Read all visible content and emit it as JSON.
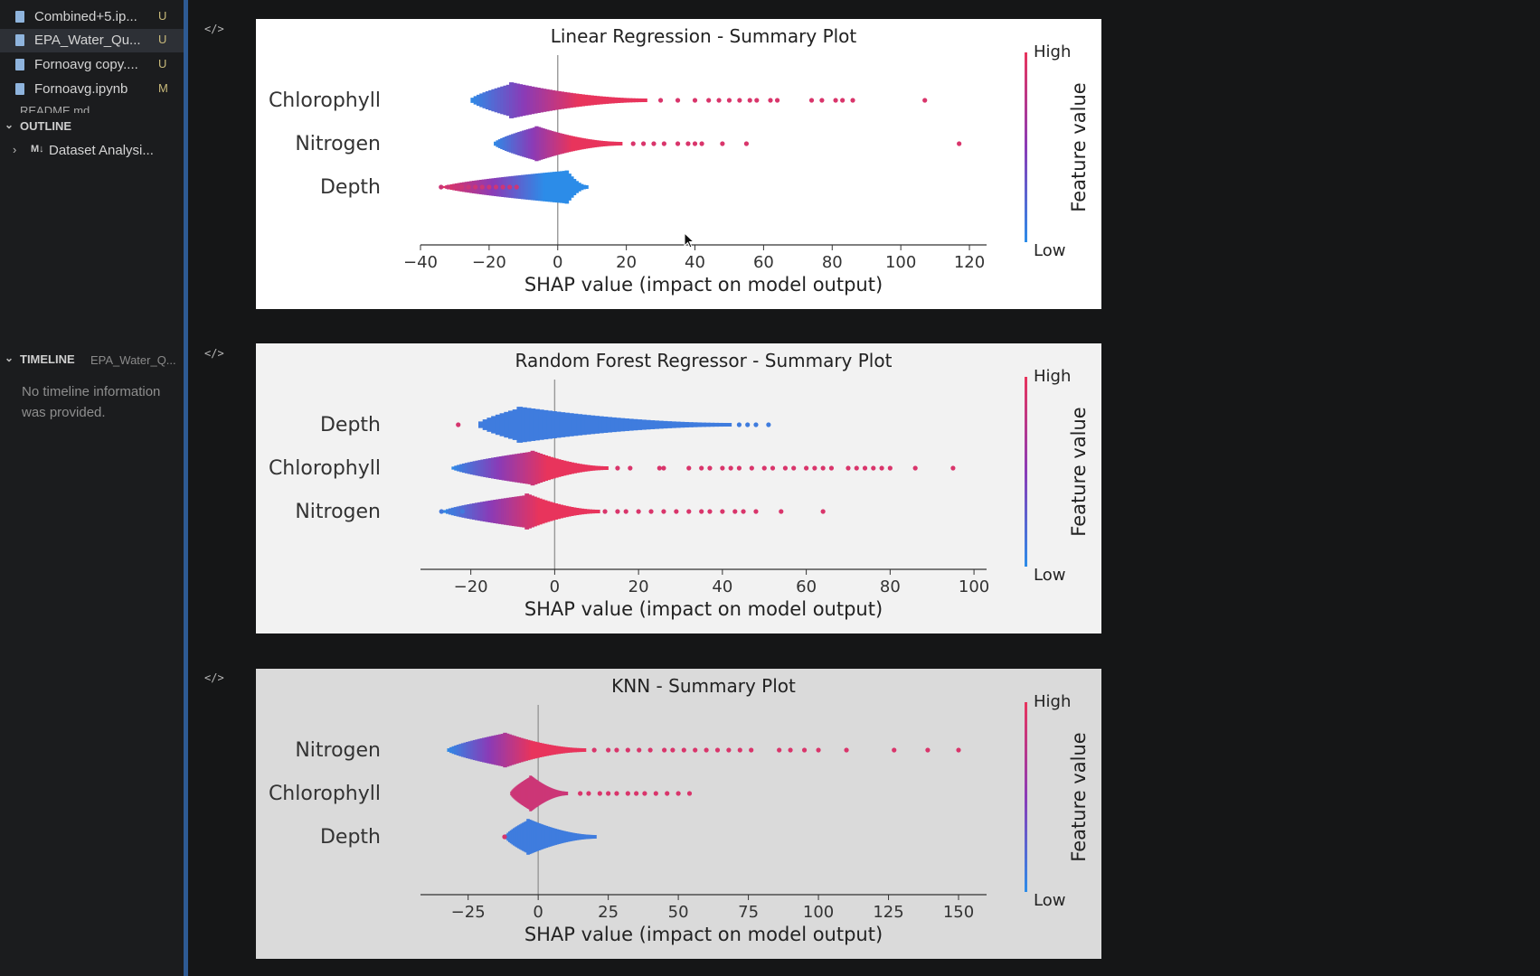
{
  "explorer": {
    "files": [
      {
        "name": "Combined+5.ip...",
        "badge": "U",
        "icon": "notebook-icon",
        "selected": false
      },
      {
        "name": "EPA_Water_Qu...",
        "badge": "U",
        "icon": "notebook-icon",
        "selected": true
      },
      {
        "name": "Fornoavg copy....",
        "badge": "U",
        "icon": "notebook-icon",
        "selected": false
      },
      {
        "name": "Fornoavg.ipynb",
        "badge": "M",
        "icon": "notebook-icon",
        "selected": false
      }
    ],
    "partial_file": "README.md"
  },
  "outline": {
    "header": "OUTLINE",
    "items": [
      {
        "prefix": "M↓",
        "label": "Dataset Analysi..."
      }
    ]
  },
  "timeline": {
    "header": "TIMELINE",
    "file": "EPA_Water_Q...",
    "message": "No timeline information was provided."
  },
  "cell_toggle_glyph": "</>",
  "colors": {
    "high": "#e8345c",
    "low": "#2c8ce8",
    "mid": "#8a3bb7"
  },
  "chart_data": [
    {
      "type": "beeswarm",
      "title": "Linear Regression - Summary Plot",
      "xlabel": "SHAP value (impact on model output)",
      "colorbar_label": "Feature value",
      "colorbar_high": "High",
      "colorbar_low": "Low",
      "xlim": [
        -40,
        125
      ],
      "xticks": [
        -40,
        -20,
        0,
        20,
        40,
        60,
        80,
        100,
        120
      ],
      "xtick_labels": [
        "−40",
        "−20",
        "0",
        "20",
        "40",
        "60",
        "80",
        "100",
        "120"
      ],
      "background": "#ffffff",
      "features": [
        {
          "name": "Chlorophyll",
          "min": -26,
          "max": 107,
          "peak": -14,
          "dense_max": 25,
          "low_side": "left",
          "outliers": [
            30,
            35,
            40,
            44,
            47,
            50,
            53,
            56,
            58,
            62,
            64,
            74,
            77,
            81,
            83,
            86,
            107
          ]
        },
        {
          "name": "Nitrogen",
          "min": -19,
          "max": 117,
          "peak": -7,
          "dense_max": 18,
          "low_side": "left",
          "outliers": [
            22,
            25,
            28,
            31,
            35,
            38,
            40,
            42,
            48,
            55,
            117
          ]
        },
        {
          "name": "Depth",
          "min": -34,
          "max": 8,
          "peak": 2,
          "dense_max": 8,
          "low_side": "right",
          "outliers": [
            -34,
            -32,
            -30,
            -28,
            -26,
            -24,
            -22,
            -20,
            -18,
            -16,
            -14,
            -12
          ]
        }
      ]
    },
    {
      "type": "beeswarm",
      "title": "Random Forest Regressor - Summary Plot",
      "xlabel": "SHAP value (impact on model output)",
      "colorbar_label": "Feature value",
      "colorbar_high": "High",
      "colorbar_low": "Low",
      "xlim": [
        -32,
        103
      ],
      "xticks": [
        -20,
        0,
        20,
        40,
        60,
        80,
        100
      ],
      "xtick_labels": [
        "−20",
        "0",
        "20",
        "40",
        "60",
        "80",
        "100"
      ],
      "background": "#f2f2f2",
      "features": [
        {
          "name": "Depth",
          "min": -19,
          "max": 51,
          "peak": -9,
          "dense_max": 41,
          "low_side": "all",
          "outliers": [
            -23,
            44,
            46,
            48,
            51
          ]
        },
        {
          "name": "Chlorophyll",
          "min": -25,
          "max": 95,
          "peak": -6,
          "dense_max": 12,
          "low_side": "left",
          "outliers": [
            15,
            18,
            25,
            26,
            32,
            35,
            37,
            40,
            42,
            44,
            47,
            50,
            52,
            55,
            57,
            60,
            62,
            64,
            66,
            70,
            72,
            74,
            76,
            78,
            80,
            86,
            95
          ]
        },
        {
          "name": "Nitrogen",
          "min": -27,
          "max": 64,
          "peak": -7,
          "dense_max": 10,
          "low_side": "left",
          "outliers": [
            -27,
            -25,
            -22,
            12,
            15,
            17,
            20,
            23,
            26,
            29,
            32,
            35,
            37,
            40,
            43,
            45,
            48,
            54,
            64
          ]
        }
      ]
    },
    {
      "type": "beeswarm",
      "title": "KNN - Summary Plot",
      "xlabel": "SHAP value (impact on model output)",
      "colorbar_label": "Feature value",
      "colorbar_high": "High",
      "colorbar_low": "Low",
      "xlim": [
        -42,
        160
      ],
      "xticks": [
        -25,
        0,
        25,
        50,
        75,
        100,
        125,
        150
      ],
      "xtick_labels": [
        "−25",
        "0",
        "25",
        "50",
        "75",
        "100",
        "125",
        "150"
      ],
      "background": "#dadada",
      "features": [
        {
          "name": "Nitrogen",
          "min": -33,
          "max": 152,
          "peak": -13,
          "dense_max": 16,
          "low_side": "left",
          "outliers": [
            20,
            25,
            28,
            32,
            36,
            40,
            45,
            48,
            52,
            56,
            60,
            64,
            68,
            72,
            76,
            86,
            90,
            95,
            100,
            110,
            127,
            139,
            150
          ]
        },
        {
          "name": "Chlorophyll",
          "min": -10,
          "max": 56,
          "peak": -3,
          "dense_max": 10,
          "low_side": "none",
          "outliers": [
            15,
            18,
            22,
            25,
            28,
            32,
            35,
            38,
            42,
            46,
            50,
            54
          ]
        },
        {
          "name": "Depth",
          "min": -12,
          "max": 20,
          "peak": -4,
          "dense_max": 20,
          "low_side": "all",
          "outliers": [
            -12
          ]
        }
      ]
    }
  ]
}
